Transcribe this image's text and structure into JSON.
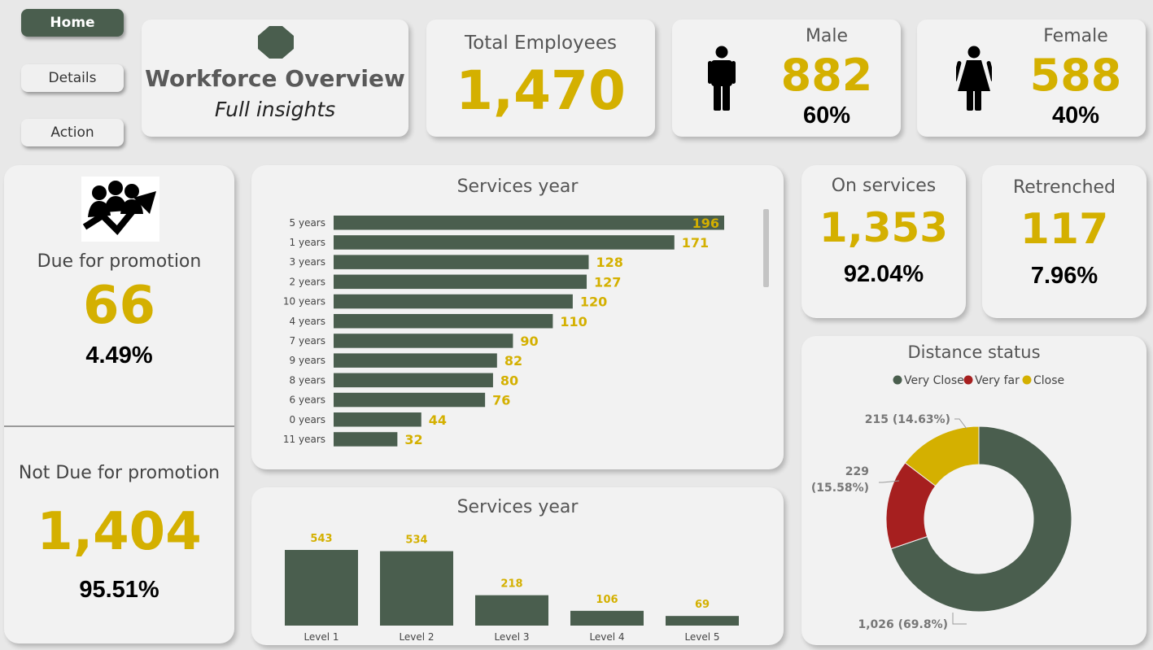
{
  "nav": {
    "home": "Home",
    "details": "Details",
    "action": "Action"
  },
  "header": {
    "title": "Workforce Overview",
    "subtitle": "Full insights"
  },
  "total": {
    "label": "Total Employees",
    "value": "1,470"
  },
  "male": {
    "label": "Male",
    "value": "882",
    "pct": "60%"
  },
  "female": {
    "label": "Female",
    "value": "588",
    "pct": "40%"
  },
  "promotion": {
    "due_label": "Due for promotion",
    "due_value": "66",
    "due_pct": "4.49%",
    "not_due_label": "Not Due for promotion",
    "not_due_value": "1,404",
    "not_due_pct": "95.51%"
  },
  "on_services": {
    "label": "On services",
    "value": "1,353",
    "pct": "92.04%"
  },
  "retrenched": {
    "label": "Retrenched",
    "value": "117",
    "pct": "7.96%"
  },
  "colors": {
    "green": "#4a5e4e",
    "gold": "#d4b000",
    "red": "#a61f1f"
  },
  "chart_data": [
    {
      "type": "bar",
      "orientation": "horizontal",
      "title": "Services year",
      "categories": [
        "5 years",
        "1 years",
        "3 years",
        "2 years",
        "10 years",
        "4 years",
        "7 years",
        "9 years",
        "8 years",
        "6 years",
        "0 years",
        "11 years"
      ],
      "values": [
        196,
        171,
        128,
        127,
        120,
        110,
        90,
        82,
        80,
        76,
        44,
        32
      ]
    },
    {
      "type": "bar",
      "title": "Services year",
      "categories": [
        "Level 1",
        "Level 2",
        "Level 3",
        "Level 4",
        "Level 5"
      ],
      "values": [
        543,
        534,
        218,
        106,
        69
      ]
    },
    {
      "type": "pie",
      "title": "Distance status",
      "legend": "top",
      "categories": [
        "Very Close",
        "Very far",
        "Close"
      ],
      "values": [
        1026,
        229,
        215
      ],
      "labels": [
        "1,026 (69.8%)",
        "229 (15.58%)",
        "215 (14.63%)"
      ],
      "colors": [
        "#4a5e4e",
        "#a61f1f",
        "#d4b000"
      ]
    }
  ]
}
